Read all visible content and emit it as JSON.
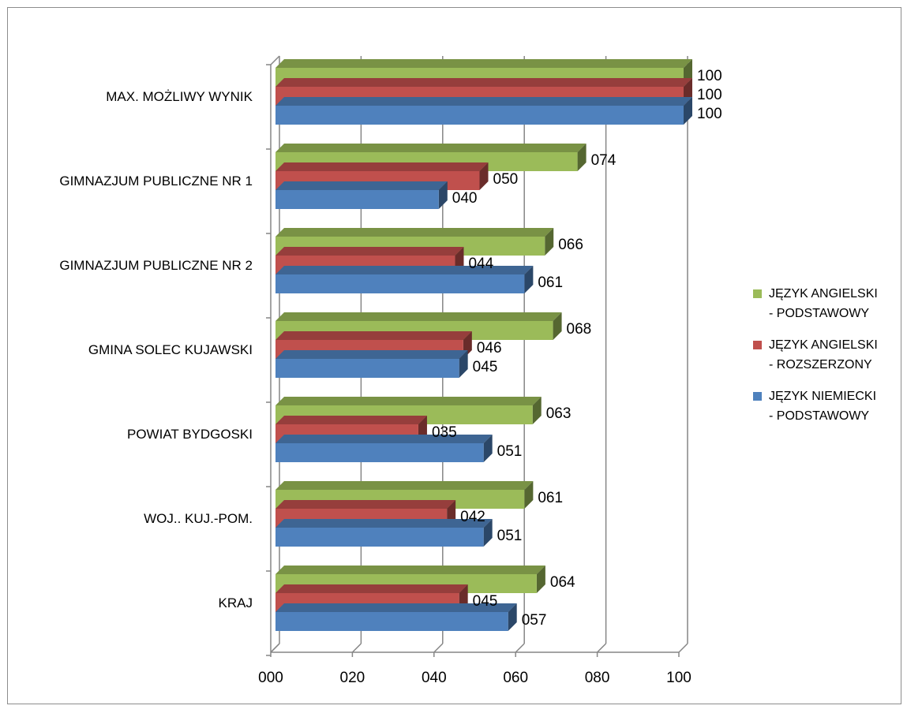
{
  "chart_data": {
    "type": "bar",
    "orientation": "horizontal",
    "style": "3d-clustered",
    "categories": [
      "MAX. MOŻLIWY WYNIK",
      "GIMNAZJUM PUBLICZNE NR 1",
      "GIMNAZJUM PUBLICZNE NR 2",
      "GMINA SOLEC KUJAWSKI",
      "POWIAT BYDGOSKI",
      "WOJ.. KUJ.-POM.",
      "KRAJ"
    ],
    "series": [
      {
        "name": "JĘZYK ANGIELSKI\n - PODSTAWOWY",
        "color": "#9BBB59",
        "values": [
          100,
          74,
          66,
          68,
          63,
          61,
          64
        ],
        "labels": [
          "100",
          "074",
          "066",
          "068",
          "063",
          "061",
          "064"
        ]
      },
      {
        "name": "JĘZYK ANGIELSKI\n - ROZSZERZONY",
        "color": "#C0504D",
        "values": [
          100,
          50,
          44,
          46,
          35,
          42,
          45
        ],
        "labels": [
          "100",
          "050",
          "044",
          "046",
          "035",
          "042",
          "045"
        ]
      },
      {
        "name": "JĘZYK NIEMIECKI\n - PODSTAWOWY",
        "color": "#4F81BD",
        "values": [
          100,
          40,
          61,
          45,
          51,
          51,
          57
        ],
        "labels": [
          "100",
          "040",
          "061",
          "045",
          "051",
          "051",
          "057"
        ]
      }
    ],
    "xlim": [
      0,
      100
    ],
    "xticks": [
      "000",
      "020",
      "040",
      "060",
      "080",
      "100"
    ],
    "grid": true,
    "legend_position": "right"
  }
}
